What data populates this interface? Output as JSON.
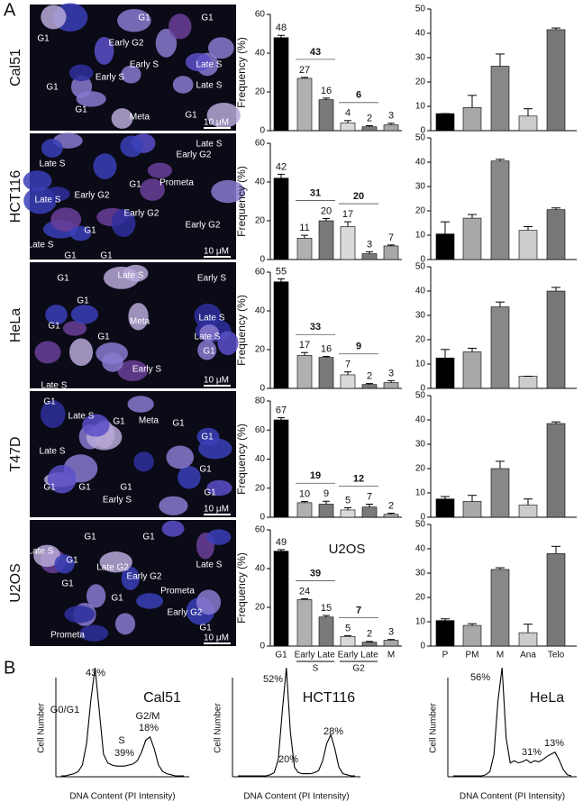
{
  "panel_labels": [
    "A",
    "B"
  ],
  "images": [
    {
      "name": "Cal51",
      "scale": "10 μM",
      "labels": [
        "G1",
        "G1",
        "G1",
        "Early G2",
        "Early S",
        "Late S",
        "Early S",
        "G1",
        "Late S",
        "G1",
        "Meta",
        "G1"
      ]
    },
    {
      "name": "HCT116",
      "scale": "10 μM",
      "labels": [
        "Late S",
        "Early G2",
        "Late S",
        "Prometa",
        "G1",
        "Late S",
        "Early G2",
        "Early G2",
        "Early G2",
        "G1",
        "Late S",
        "G1",
        "G1"
      ]
    },
    {
      "name": "HeLa",
      "scale": "10 μM",
      "labels": [
        "G1",
        "Late S",
        "Early S",
        "G1",
        "Meta",
        "Late S",
        "G1",
        "G1",
        "Late S",
        "G1",
        "Early S",
        "Late S"
      ]
    },
    {
      "name": "T47D",
      "scale": "10 μM",
      "labels": [
        "G1",
        "Late S",
        "G1",
        "Meta",
        "G1",
        "G1",
        "Late S",
        "G1",
        "G1",
        "G1",
        "G1",
        "Early S",
        "G1"
      ]
    },
    {
      "name": "U2OS",
      "scale": "10 μM",
      "labels": [
        "G1",
        "G1",
        "Late S",
        "G1",
        "Late G2",
        "Late S",
        "Early G2",
        "Prometa",
        "G1",
        "G1",
        "Early G2",
        "G1",
        "Prometa"
      ]
    }
  ],
  "chart_data": [
    {
      "type": "bar",
      "ylabel": "Frequency (%)",
      "values": [
        48,
        27,
        16,
        4,
        2,
        3
      ],
      "errors": [
        1.2,
        0.5,
        0.8,
        1.2,
        0.6,
        0.8
      ],
      "colors": [
        "#000000",
        "#b0b0b0",
        "#7a7a7a",
        "#d9d9d9",
        "#7a7a7a",
        "#a8a8a8"
      ],
      "ylim": [
        0,
        60
      ],
      "yticks": [
        0,
        20,
        40,
        60
      ],
      "group_values": [
        43,
        6
      ]
    },
    {
      "type": "bar",
      "ylabel": "Frequency (%)",
      "values": [
        42,
        11,
        20,
        17,
        3,
        7
      ],
      "errors": [
        2,
        1.5,
        1.2,
        2.5,
        1,
        0.5
      ],
      "colors": [
        "#000000",
        "#b0b0b0",
        "#7a7a7a",
        "#d9d9d9",
        "#7a7a7a",
        "#a8a8a8"
      ],
      "ylim": [
        0,
        60
      ],
      "yticks": [
        0,
        20,
        40,
        60
      ],
      "group_values": [
        31,
        20
      ]
    },
    {
      "type": "bar",
      "ylabel": "Frequency (%)",
      "values": [
        55,
        17,
        16,
        7,
        2,
        3
      ],
      "errors": [
        1.5,
        1.5,
        0.5,
        1.5,
        0.5,
        1
      ],
      "colors": [
        "#000000",
        "#b0b0b0",
        "#7a7a7a",
        "#d9d9d9",
        "#7a7a7a",
        "#a8a8a8"
      ],
      "ylim": [
        0,
        60
      ],
      "yticks": [
        0,
        20,
        40,
        60
      ],
      "group_values": [
        33,
        9
      ]
    },
    {
      "type": "bar",
      "ylabel": "Frequency (%)",
      "values": [
        67,
        10,
        9,
        5,
        7,
        2
      ],
      "errors": [
        1.5,
        0.8,
        2,
        1.5,
        2,
        0.8
      ],
      "colors": [
        "#000000",
        "#b0b0b0",
        "#7a7a7a",
        "#d9d9d9",
        "#7a7a7a",
        "#a8a8a8"
      ],
      "ylim": [
        0,
        80
      ],
      "yticks": [
        0,
        20,
        40,
        60,
        80
      ],
      "group_values": [
        19,
        12
      ]
    },
    {
      "type": "bar",
      "title": "U2OS",
      "ylabel": "Frequency (%)",
      "values": [
        49,
        24,
        15,
        5,
        2,
        3
      ],
      "errors": [
        0.8,
        0.4,
        0.8,
        0.4,
        0.4,
        0.4
      ],
      "colors": [
        "#000000",
        "#b0b0b0",
        "#7a7a7a",
        "#d9d9d9",
        "#7a7a7a",
        "#a8a8a8"
      ],
      "ylim": [
        0,
        60
      ],
      "yticks": [
        0,
        20,
        40,
        60
      ],
      "group_values": [
        39,
        7
      ],
      "categories": [
        "G1",
        "Early",
        "Late",
        "Early",
        "Late",
        "M"
      ],
      "category_groups": [
        "S",
        "G2"
      ]
    },
    {
      "type": "bar",
      "values": [
        7,
        9.5,
        26.5,
        6,
        41.5
      ],
      "errors": [
        0,
        5,
        5,
        3,
        0.7
      ],
      "colors": [
        "#000000",
        "#a8a8a8",
        "#888888",
        "#cccccc",
        "#777777"
      ],
      "ylim": [
        0,
        50
      ],
      "yticks": [
        0,
        10,
        20,
        30,
        40,
        50
      ]
    },
    {
      "type": "bar",
      "values": [
        10.5,
        17,
        40.5,
        12,
        20.5
      ],
      "errors": [
        5,
        1.5,
        0.7,
        1.5,
        0.7
      ],
      "colors": [
        "#000000",
        "#a8a8a8",
        "#888888",
        "#cccccc",
        "#777777"
      ],
      "ylim": [
        0,
        50
      ],
      "yticks": [
        0,
        10,
        20,
        30,
        40,
        50
      ]
    },
    {
      "type": "bar",
      "values": [
        12.5,
        15,
        33.5,
        5,
        40
      ],
      "errors": [
        3.5,
        1.5,
        2,
        0,
        1.5
      ],
      "colors": [
        "#000000",
        "#a8a8a8",
        "#888888",
        "#cccccc",
        "#777777"
      ],
      "ylim": [
        0,
        50
      ],
      "yticks": [
        0,
        10,
        20,
        30,
        40,
        50
      ]
    },
    {
      "type": "bar",
      "values": [
        7.5,
        6.5,
        20,
        5,
        38.5
      ],
      "errors": [
        1,
        2.5,
        3,
        2.5,
        0.7
      ],
      "colors": [
        "#000000",
        "#a8a8a8",
        "#888888",
        "#cccccc",
        "#777777"
      ],
      "ylim": [
        0,
        50
      ],
      "yticks": [
        0,
        10,
        20,
        30,
        40,
        50
      ]
    },
    {
      "type": "bar",
      "values": [
        10.5,
        8.5,
        31.5,
        5.5,
        38
      ],
      "errors": [
        0.7,
        0.7,
        0.7,
        3.5,
        3
      ],
      "colors": [
        "#000000",
        "#a8a8a8",
        "#888888",
        "#cccccc",
        "#777777"
      ],
      "ylim": [
        0,
        50
      ],
      "yticks": [
        0,
        10,
        20,
        30,
        40,
        50
      ],
      "categories": [
        "P",
        "PM",
        "M",
        "Ana",
        "Telo"
      ]
    },
    {
      "type": "line",
      "title": "Cal51",
      "ylabel": "Cell Number",
      "xlabel": "DNA Content (PI Intensity)",
      "color": "#000000",
      "ylim": [
        0,
        100
      ],
      "values": [
        0,
        0,
        1,
        2,
        4,
        10,
        30,
        70,
        100,
        60,
        20,
        12,
        10,
        9,
        9,
        9,
        10,
        11,
        14,
        22,
        33,
        36,
        25,
        10,
        4,
        2,
        1,
        0,
        0,
        0
      ],
      "annotations": [
        "43%",
        "G0/G1",
        "S",
        "39%",
        "G2/M",
        "18%"
      ]
    },
    {
      "type": "line",
      "title": "HCT116",
      "ylabel": "Cell Number",
      "xlabel": "DNA Content (PI Intensity)",
      "color": "#000000",
      "ylim": [
        0,
        100
      ],
      "values": [
        0,
        0,
        0,
        0,
        0,
        0,
        0,
        0,
        1,
        3,
        15,
        60,
        100,
        40,
        8,
        3,
        2,
        2,
        2,
        3,
        5,
        14,
        30,
        38,
        25,
        8,
        2,
        1,
        0,
        0
      ],
      "annotations": [
        "52%",
        "20%",
        "28%"
      ]
    },
    {
      "type": "line",
      "title": "HeLa",
      "ylabel": "Cell Number",
      "xlabel": "DNA Content (PI Intensity)",
      "color": "#000000",
      "ylim": [
        0,
        100
      ],
      "values": [
        0,
        0,
        0,
        0,
        0,
        0,
        0,
        0,
        1,
        4,
        20,
        70,
        100,
        35,
        12,
        14,
        12,
        13,
        15,
        12,
        14,
        13,
        15,
        18,
        20,
        22,
        15,
        6,
        1,
        0
      ],
      "annotations": [
        "56%",
        "31%",
        "13%"
      ]
    }
  ]
}
